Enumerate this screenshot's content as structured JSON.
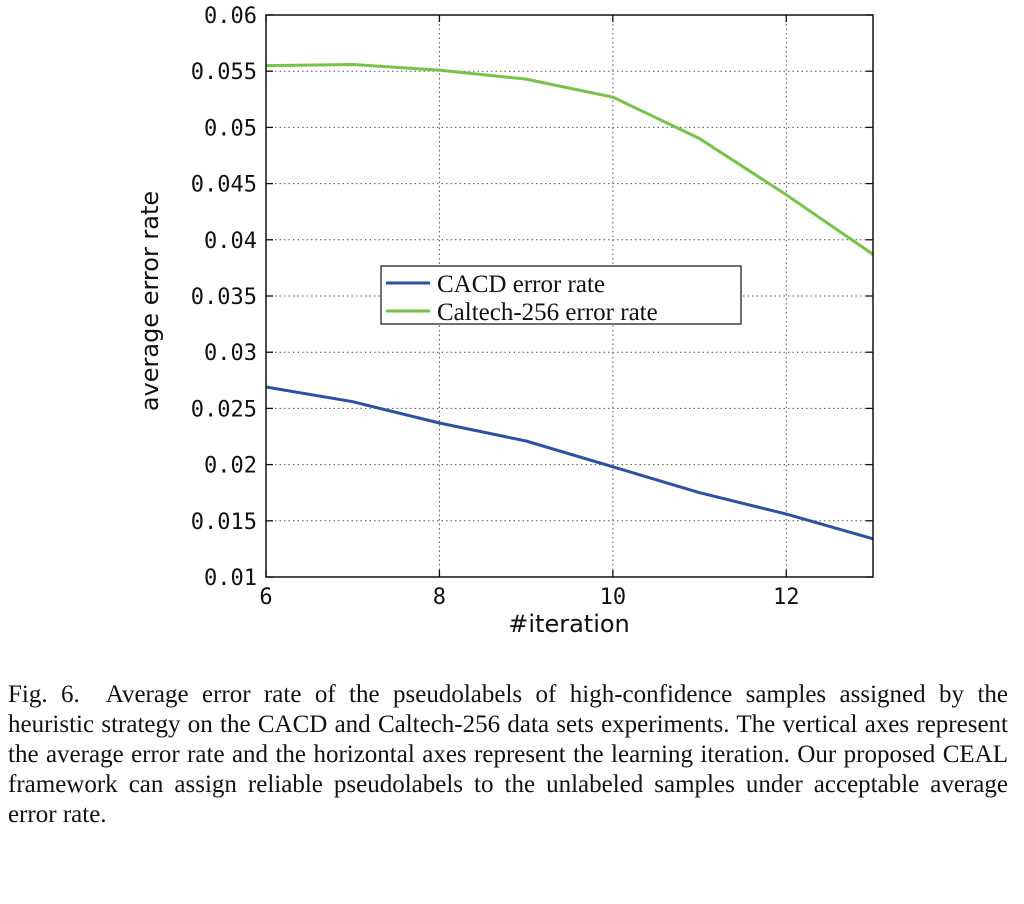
{
  "chart_data": {
    "type": "line",
    "xlabel": "#iteration",
    "ylabel": "average error rate",
    "xlim": [
      6,
      13
    ],
    "ylim": [
      0.01,
      0.06
    ],
    "xticks": [
      6,
      8,
      10,
      12
    ],
    "xtick_labels": [
      "6",
      "8",
      "10",
      "12"
    ],
    "yticks": [
      0.01,
      0.015,
      0.02,
      0.025,
      0.03,
      0.035,
      0.04,
      0.045,
      0.05,
      0.055,
      0.06
    ],
    "ytick_labels": [
      "0.01",
      "0.015",
      "0.02",
      "0.025",
      "0.03",
      "0.035",
      "0.04",
      "0.045",
      "0.05",
      "0.055",
      "0.06"
    ],
    "grid": true,
    "legend_position": "center",
    "x": [
      6,
      7,
      8,
      9,
      10,
      11,
      12,
      13
    ],
    "series": [
      {
        "name": "CACD error rate",
        "color": "#2e4fa3",
        "values": [
          0.0269,
          0.0256,
          0.0237,
          0.0221,
          0.0198,
          0.0175,
          0.0156,
          0.0134
        ]
      },
      {
        "name": "Caltech-256 error rate",
        "color": "#79c24a",
        "values": [
          0.0555,
          0.0556,
          0.0551,
          0.0543,
          0.0527,
          0.049,
          0.044,
          0.0387
        ]
      }
    ]
  },
  "caption": {
    "label": "Fig. 6.",
    "text": "Average error rate of the pseudolabels of high-confidence samples assigned by the heuristic strategy on the CACD and Caltech-256 data sets experiments. The vertical axes represent the average error rate and the horizontal axes represent the learning iteration. Our proposed CEAL framework can assign reliable pseudolabels to the unlabeled samples under acceptable average error rate."
  }
}
